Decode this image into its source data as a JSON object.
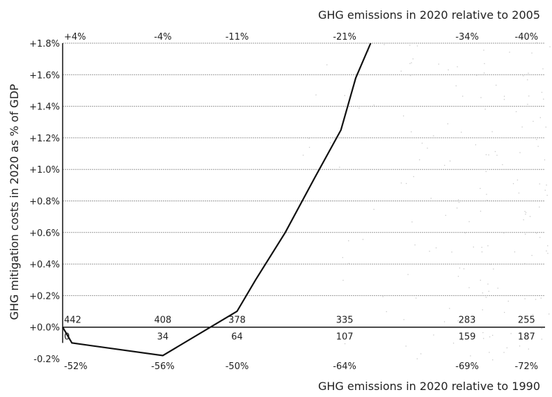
{
  "chart_data": {
    "type": "line",
    "title": "",
    "ylabel": "GHG mitigation costs in 2020 as % of GDP",
    "xlabel_top": "GHG emissions in 2020 relative to 2005",
    "xlabel_bottom": "GHG emissions in 2020 relative to 1990",
    "ylim": [
      -0.2,
      1.8
    ],
    "y_ticks": [
      "-0.2%",
      "+0.0%",
      "+0.2%",
      "+0.4%",
      "+0.6%",
      "+0.8%",
      "+1.0%",
      "+1.2%",
      "+1.4%",
      "+1.6%",
      "+1.8%"
    ],
    "y_tick_values": [
      -0.2,
      0.0,
      0.2,
      0.4,
      0.6,
      0.8,
      1.0,
      1.2,
      1.4,
      1.6,
      1.8
    ],
    "x_domain": [
      0,
      195
    ],
    "grid": true,
    "top_ticks": [
      {
        "x": 0,
        "label": "+4%"
      },
      {
        "x": 54,
        "label": "-4%"
      },
      {
        "x": 94,
        "label": "-11%"
      },
      {
        "x": 152,
        "label": "-21%"
      },
      {
        "x": 218,
        "label": "-34%"
      },
      {
        "x": 250,
        "label": "-40%"
      }
    ],
    "inner_upper_labels": [
      {
        "x": 0,
        "label": "442"
      },
      {
        "x": 54,
        "label": "408"
      },
      {
        "x": 94,
        "label": "378"
      },
      {
        "x": 152,
        "label": "335"
      },
      {
        "x": 218,
        "label": "283"
      },
      {
        "x": 250,
        "label": "255"
      }
    ],
    "inner_lower_labels": [
      {
        "x": 0,
        "label": "0"
      },
      {
        "x": 54,
        "label": "34"
      },
      {
        "x": 94,
        "label": "64"
      },
      {
        "x": 152,
        "label": "107"
      },
      {
        "x": 218,
        "label": "159"
      },
      {
        "x": 250,
        "label": "187"
      }
    ],
    "bottom_ticks": [
      {
        "x": 0,
        "label": "-52%"
      },
      {
        "x": 54,
        "label": "-56%"
      },
      {
        "x": 94,
        "label": "-50%"
      },
      {
        "x": 152,
        "label": "-64%"
      },
      {
        "x": 218,
        "label": "-69%"
      },
      {
        "x": 250,
        "label": "-72%"
      }
    ],
    "series": [
      {
        "x": [
          0,
          5,
          54,
          94,
          104,
          120,
          136,
          150,
          158,
          166
        ],
        "y": [
          0.0,
          -0.1,
          -0.18,
          0.1,
          0.3,
          0.6,
          0.95,
          1.25,
          1.58,
          1.8
        ]
      }
    ]
  }
}
